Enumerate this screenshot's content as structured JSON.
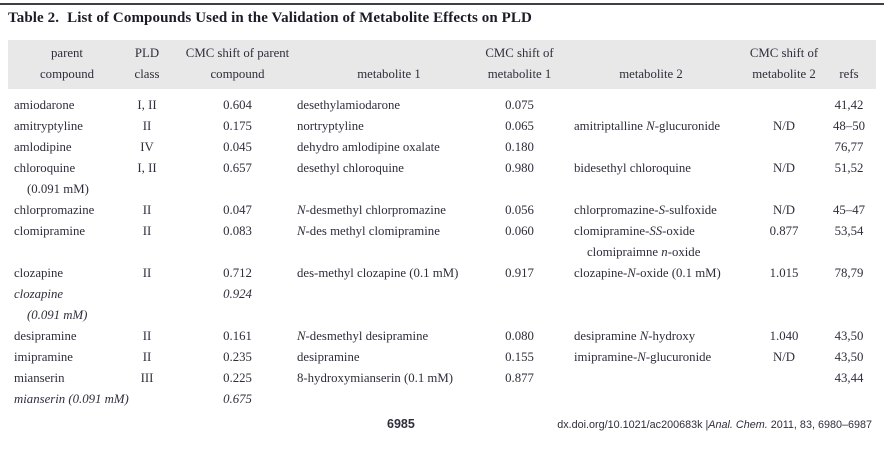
{
  "title": {
    "label": "Table 2.",
    "text": "List of Compounds Used in the Validation of Metabolite Effects on PLD"
  },
  "table": {
    "columns": [
      {
        "id": "parent-compound",
        "header_line1": "parent",
        "header_line2": "compound",
        "align": "left"
      },
      {
        "id": "pld-class",
        "header_line1": "PLD",
        "header_line2": "class",
        "align": "center"
      },
      {
        "id": "cmc-shift-parent",
        "header_line1": "CMC shift of parent",
        "header_line2": "compound",
        "align": "center"
      },
      {
        "id": "metabolite-1",
        "header_line1": "",
        "header_line2": "metabolite 1",
        "align": "left"
      },
      {
        "id": "cmc-shift-metabolite-1",
        "header_line1": "CMC shift of",
        "header_line2": "metabolite 1",
        "align": "center"
      },
      {
        "id": "metabolite-2",
        "header_line1": "",
        "header_line2": "metabolite 2",
        "align": "left"
      },
      {
        "id": "cmc-shift-metabolite-2",
        "header_line1": "CMC shift of",
        "header_line2": "metabolite 2",
        "align": "center"
      },
      {
        "id": "refs",
        "header_line1": "",
        "header_line2": "refs",
        "align": "center"
      }
    ],
    "rows": [
      {
        "cells": [
          "amiodarone",
          "I, II",
          "0.604",
          "desethylamiodarone",
          "0.075",
          "",
          "",
          "41,42"
        ]
      },
      {
        "cells": [
          "amitryptyline",
          "II",
          "0.175",
          "nortryptyline",
          "0.065",
          "amitriptalline *N*-glucuronide",
          "N/D",
          "48–50"
        ]
      },
      {
        "cells": [
          "amlodipine",
          "IV",
          "0.045",
          "dehydro amlodipine oxalate",
          "0.180",
          "",
          "",
          "76,77"
        ]
      },
      {
        "cells": [
          [
            "chloroquine",
            "(0.091 mM)"
          ],
          "I, II",
          "0.657",
          "desethyl chloroquine",
          "0.980",
          "bidesethyl chloroquine",
          "N/D",
          "51,52"
        ]
      },
      {
        "cells": [
          "chlorpromazine",
          "II",
          "0.047",
          "*N*-desmethyl chlorpromazine",
          "0.056",
          "chlorpromazine-*S*-sulfoxide",
          "N/D",
          "45–47"
        ]
      },
      {
        "cells": [
          "clomipramine",
          "II",
          "0.083",
          "*N*-des methyl clomipramine",
          "0.060",
          [
            "clomipramine-*SS*-oxide",
            "clomipraimne *n*-oxide"
          ],
          "0.877",
          "53,54"
        ]
      },
      {
        "cells": [
          "clozapine",
          "II",
          "0.712",
          "des-methyl clozapine (0.1 mM)",
          "0.917",
          "clozapine-*N*-oxide (0.1 mM)",
          "1.015",
          "78,79"
        ]
      },
      {
        "cells": [
          [
            "*clozapine*",
            "*(0.091 mM)*"
          ],
          "",
          "*0.924*",
          "",
          "",
          "",
          "",
          ""
        ]
      },
      {
        "cells": [
          "desipramine",
          "II",
          "0.161",
          "*N*-desmethyl desipramine",
          "0.080",
          "desipramine *N*-hydroxy",
          "1.040",
          "43,50"
        ]
      },
      {
        "cells": [
          "imipramine",
          "II",
          "0.235",
          "desipramine",
          "0.155",
          "imipramine-*N*-glucuronide",
          "N/D",
          "43,50"
        ]
      },
      {
        "cells": [
          "mianserin",
          "III",
          "0.225",
          "8-hydroxymianserin (0.1 mM)",
          "0.877",
          "",
          "",
          "43,44"
        ]
      },
      {
        "cells": [
          "*mianserin (0.091 mM)*",
          "",
          "*0.675*",
          "",
          "",
          "",
          "",
          ""
        ]
      }
    ]
  },
  "footer": {
    "page_number": "6985",
    "citation": "dx.doi.org/10.1021/ac200683k |*Anal. Chem.* 2011, 83, 6980–6987"
  },
  "colors": {
    "header_band": "#e8e8e8",
    "text": "#2e2e3c",
    "title_text": "#1c1c28",
    "rule": "#3f3f47"
  }
}
